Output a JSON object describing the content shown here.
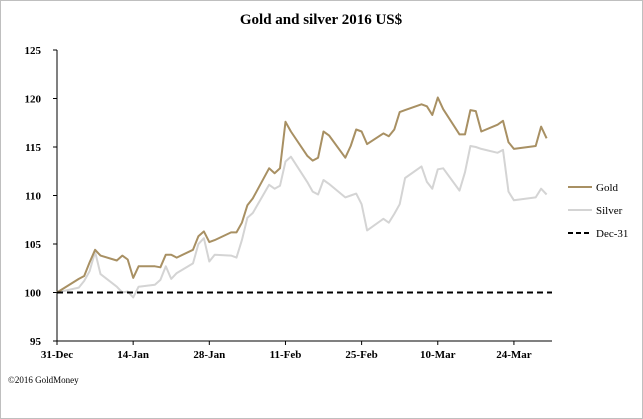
{
  "chart_data": {
    "type": "line",
    "title": "Gold and silver 2016 US$",
    "xlabel": "",
    "ylabel": "",
    "ylim": [
      95,
      125
    ],
    "yticks": [
      95,
      100,
      105,
      110,
      115,
      120,
      125
    ],
    "xlim": [
      "2015-12-31",
      "2016-03-31"
    ],
    "xticks": [
      {
        "date": "2015-12-31",
        "label": "31-Dec"
      },
      {
        "date": "2016-01-14",
        "label": "14-Jan"
      },
      {
        "date": "2016-01-28",
        "label": "28-Jan"
      },
      {
        "date": "2016-02-11",
        "label": "11-Feb"
      },
      {
        "date": "2016-02-25",
        "label": "25-Feb"
      },
      {
        "date": "2016-03-10",
        "label": "10-Mar"
      },
      {
        "date": "2016-03-24",
        "label": "24-Mar"
      }
    ],
    "grid": false,
    "legend_position": "right",
    "series": [
      {
        "name": "Gold",
        "color": "#a89063",
        "style": "solid",
        "points": [
          [
            "2015-12-31",
            100.0
          ],
          [
            "2016-01-04",
            101.4
          ],
          [
            "2016-01-05",
            101.7
          ],
          [
            "2016-01-06",
            103.1
          ],
          [
            "2016-01-07",
            104.4
          ],
          [
            "2016-01-08",
            103.8
          ],
          [
            "2016-01-11",
            103.3
          ],
          [
            "2016-01-12",
            103.8
          ],
          [
            "2016-01-13",
            103.4
          ],
          [
            "2016-01-14",
            101.5
          ],
          [
            "2016-01-15",
            102.7
          ],
          [
            "2016-01-18",
            102.7
          ],
          [
            "2016-01-19",
            102.6
          ],
          [
            "2016-01-20",
            103.9
          ],
          [
            "2016-01-21",
            103.9
          ],
          [
            "2016-01-22",
            103.6
          ],
          [
            "2016-01-25",
            104.4
          ],
          [
            "2016-01-26",
            105.8
          ],
          [
            "2016-01-27",
            106.3
          ],
          [
            "2016-01-28",
            105.2
          ],
          [
            "2016-01-29",
            105.4
          ],
          [
            "2016-02-01",
            106.2
          ],
          [
            "2016-02-02",
            106.2
          ],
          [
            "2016-02-03",
            107.2
          ],
          [
            "2016-02-04",
            109.0
          ],
          [
            "2016-02-05",
            109.7
          ],
          [
            "2016-02-08",
            112.8
          ],
          [
            "2016-02-09",
            112.3
          ],
          [
            "2016-02-10",
            112.8
          ],
          [
            "2016-02-11",
            117.6
          ],
          [
            "2016-02-12",
            116.6
          ],
          [
            "2016-02-15",
            114.1
          ],
          [
            "2016-02-16",
            113.6
          ],
          [
            "2016-02-17",
            113.9
          ],
          [
            "2016-02-18",
            116.6
          ],
          [
            "2016-02-19",
            116.2
          ],
          [
            "2016-02-22",
            113.9
          ],
          [
            "2016-02-23",
            115.1
          ],
          [
            "2016-02-24",
            116.8
          ],
          [
            "2016-02-25",
            116.6
          ],
          [
            "2016-02-26",
            115.3
          ],
          [
            "2016-02-29",
            116.4
          ],
          [
            "2016-03-01",
            116.1
          ],
          [
            "2016-03-02",
            116.8
          ],
          [
            "2016-03-03",
            118.6
          ],
          [
            "2016-03-04",
            118.8
          ],
          [
            "2016-03-07",
            119.4
          ],
          [
            "2016-03-08",
            119.2
          ],
          [
            "2016-03-09",
            118.3
          ],
          [
            "2016-03-10",
            120.1
          ],
          [
            "2016-03-11",
            118.9
          ],
          [
            "2016-03-14",
            116.3
          ],
          [
            "2016-03-15",
            116.3
          ],
          [
            "2016-03-16",
            118.8
          ],
          [
            "2016-03-17",
            118.7
          ],
          [
            "2016-03-18",
            116.6
          ],
          [
            "2016-03-21",
            117.3
          ],
          [
            "2016-03-22",
            117.7
          ],
          [
            "2016-03-23",
            115.5
          ],
          [
            "2016-03-24",
            114.8
          ],
          [
            "2016-03-28",
            115.1
          ],
          [
            "2016-03-29",
            117.1
          ],
          [
            "2016-03-30",
            115.9
          ]
        ]
      },
      {
        "name": "Silver",
        "color": "#d4d4d4",
        "style": "solid",
        "points": [
          [
            "2015-12-31",
            100.0
          ],
          [
            "2016-01-04",
            100.5
          ],
          [
            "2016-01-05",
            101.2
          ],
          [
            "2016-01-06",
            102.2
          ],
          [
            "2016-01-07",
            104.2
          ],
          [
            "2016-01-08",
            101.9
          ],
          [
            "2016-01-11",
            100.6
          ],
          [
            "2016-01-12",
            100.0
          ],
          [
            "2016-01-13",
            100.1
          ],
          [
            "2016-01-14",
            99.5
          ],
          [
            "2016-01-15",
            100.6
          ],
          [
            "2016-01-18",
            100.8
          ],
          [
            "2016-01-19",
            101.3
          ],
          [
            "2016-01-20",
            102.7
          ],
          [
            "2016-01-21",
            101.4
          ],
          [
            "2016-01-22",
            102.0
          ],
          [
            "2016-01-25",
            103.0
          ],
          [
            "2016-01-26",
            105.0
          ],
          [
            "2016-01-27",
            105.6
          ],
          [
            "2016-01-28",
            103.2
          ],
          [
            "2016-01-29",
            103.9
          ],
          [
            "2016-02-01",
            103.8
          ],
          [
            "2016-02-02",
            103.6
          ],
          [
            "2016-02-03",
            105.4
          ],
          [
            "2016-02-04",
            107.7
          ],
          [
            "2016-02-05",
            108.2
          ],
          [
            "2016-02-08",
            111.1
          ],
          [
            "2016-02-09",
            110.7
          ],
          [
            "2016-02-10",
            111.0
          ],
          [
            "2016-02-11",
            113.5
          ],
          [
            "2016-02-12",
            114.0
          ],
          [
            "2016-02-15",
            111.4
          ],
          [
            "2016-02-16",
            110.4
          ],
          [
            "2016-02-17",
            110.1
          ],
          [
            "2016-02-18",
            111.6
          ],
          [
            "2016-02-19",
            111.2
          ],
          [
            "2016-02-22",
            109.8
          ],
          [
            "2016-02-23",
            110.0
          ],
          [
            "2016-02-24",
            110.2
          ],
          [
            "2016-02-25",
            109.1
          ],
          [
            "2016-02-26",
            106.4
          ],
          [
            "2016-02-29",
            107.6
          ],
          [
            "2016-03-01",
            107.2
          ],
          [
            "2016-03-02",
            108.1
          ],
          [
            "2016-03-03",
            109.1
          ],
          [
            "2016-03-04",
            111.8
          ],
          [
            "2016-03-07",
            113.0
          ],
          [
            "2016-03-08",
            111.4
          ],
          [
            "2016-03-09",
            110.7
          ],
          [
            "2016-03-10",
            112.7
          ],
          [
            "2016-03-11",
            112.8
          ],
          [
            "2016-03-14",
            110.5
          ],
          [
            "2016-03-15",
            112.4
          ],
          [
            "2016-03-16",
            115.1
          ],
          [
            "2016-03-17",
            115.0
          ],
          [
            "2016-03-18",
            114.8
          ],
          [
            "2016-03-21",
            114.4
          ],
          [
            "2016-03-22",
            114.7
          ],
          [
            "2016-03-23",
            110.4
          ],
          [
            "2016-03-24",
            109.5
          ],
          [
            "2016-03-28",
            109.8
          ],
          [
            "2016-03-29",
            110.7
          ],
          [
            "2016-03-30",
            110.1
          ]
        ]
      },
      {
        "name": "Dec-31",
        "color": "#000000",
        "style": "dashed",
        "points": [
          [
            "2015-12-31",
            100.0
          ],
          [
            "2016-03-31",
            100.0
          ]
        ]
      }
    ],
    "annotations": [
      "©2016 GoldMoney"
    ]
  }
}
